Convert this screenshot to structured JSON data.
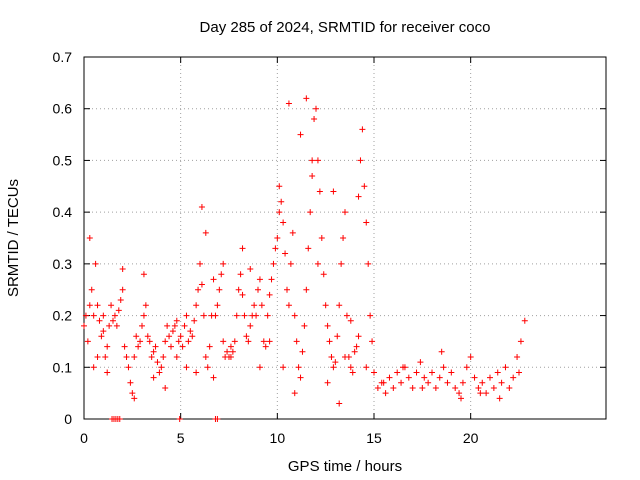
{
  "chart_data": {
    "type": "scatter",
    "title": "Day 285 of 2024, SRMTID for receiver coco",
    "xlabel": "GPS time / hours",
    "ylabel": "SRMTID / TECUs",
    "xlim": [
      0,
      27
    ],
    "ylim": [
      0,
      0.7
    ],
    "xticks": [
      0,
      5,
      10,
      15,
      20
    ],
    "yticks": [
      0,
      0.1,
      0.2,
      0.3,
      0.4,
      0.5,
      0.6,
      0.7
    ],
    "xtick_labels": [
      "0",
      "5",
      "10",
      "15",
      "20"
    ],
    "ytick_labels": [
      "0",
      "0.1",
      "0.2",
      "0.3",
      "0.4",
      "0.5",
      "0.6",
      "0.7"
    ],
    "grid": true,
    "marker": "+",
    "color": "#ff0000",
    "series": [
      {
        "name": "SRMTID",
        "x": [
          0.0,
          0.1,
          0.2,
          0.3,
          0.4,
          0.5,
          0.6,
          0.7,
          0.8,
          0.9,
          1.0,
          1.1,
          1.2,
          1.3,
          1.4,
          1.5,
          1.6,
          1.7,
          1.8,
          1.9,
          2.0,
          2.1,
          2.2,
          2.3,
          2.4,
          2.5,
          2.6,
          2.7,
          2.8,
          2.9,
          3.0,
          3.1,
          3.2,
          3.3,
          3.4,
          3.5,
          3.6,
          3.7,
          3.8,
          3.9,
          4.0,
          4.1,
          4.2,
          4.3,
          4.4,
          4.5,
          4.6,
          4.7,
          4.8,
          4.9,
          5.0,
          5.1,
          5.2,
          5.3,
          5.4,
          5.5,
          5.6,
          5.7,
          5.8,
          5.9,
          6.0,
          6.1,
          6.2,
          6.3,
          6.4,
          6.5,
          6.6,
          6.7,
          6.8,
          6.9,
          7.0,
          7.1,
          7.2,
          7.3,
          7.4,
          7.5,
          7.6,
          7.7,
          7.8,
          7.9,
          8.0,
          8.1,
          8.2,
          8.3,
          8.4,
          8.5,
          8.6,
          8.7,
          8.8,
          8.9,
          9.0,
          9.1,
          9.2,
          9.3,
          9.4,
          9.5,
          9.6,
          9.7,
          9.8,
          9.9,
          10.0,
          10.1,
          10.2,
          10.3,
          10.4,
          10.5,
          10.6,
          10.7,
          10.8,
          10.9,
          11.0,
          11.1,
          11.2,
          11.3,
          11.4,
          11.5,
          11.6,
          11.7,
          11.8,
          11.9,
          12.0,
          12.1,
          12.2,
          12.3,
          12.4,
          12.5,
          12.6,
          12.7,
          12.8,
          12.9,
          13.0,
          13.1,
          13.2,
          13.3,
          13.4,
          13.5,
          13.6,
          13.7,
          13.8,
          13.9,
          14.0,
          14.1,
          14.2,
          14.3,
          14.4,
          14.5,
          14.6,
          14.7,
          14.8,
          14.9,
          15.0,
          15.2,
          15.4,
          15.6,
          15.8,
          16.0,
          16.2,
          16.4,
          16.6,
          16.8,
          17.0,
          17.2,
          17.4,
          17.6,
          17.8,
          18.0,
          18.2,
          18.4,
          18.6,
          18.8,
          19.0,
          19.2,
          19.4,
          19.6,
          19.8,
          20.0,
          20.2,
          20.4,
          20.6,
          20.8,
          21.0,
          21.2,
          21.4,
          21.6,
          21.8,
          22.0,
          22.2,
          22.4,
          22.6,
          22.8,
          0.3,
          0.5,
          0.7,
          1.0,
          1.2,
          2.0,
          2.6,
          3.1,
          3.6,
          4.2,
          4.8,
          5.3,
          5.8,
          6.1,
          6.3,
          6.7,
          7.2,
          7.6,
          8.2,
          8.6,
          9.1,
          9.6,
          10.1,
          10.3,
          10.6,
          10.9,
          11.2,
          11.5,
          11.8,
          12.1,
          12.6,
          12.9,
          13.2,
          13.5,
          13.8,
          14.2,
          14.6,
          15.5,
          16.5,
          17.5,
          18.5,
          19.5,
          20.5,
          21.5,
          22.5,
          1.45,
          1.55,
          1.65,
          1.75,
          1.85,
          4.95,
          6.8,
          6.9
        ],
        "y": [
          0.18,
          0.2,
          0.15,
          0.22,
          0.25,
          0.2,
          0.3,
          0.22,
          0.19,
          0.16,
          0.2,
          0.12,
          0.14,
          0.18,
          0.22,
          0.19,
          0.2,
          0.18,
          0.21,
          0.23,
          0.25,
          0.14,
          0.12,
          0.1,
          0.07,
          0.05,
          0.12,
          0.16,
          0.14,
          0.15,
          0.18,
          0.2,
          0.22,
          0.16,
          0.15,
          0.12,
          0.13,
          0.14,
          0.11,
          0.09,
          0.1,
          0.12,
          0.15,
          0.18,
          0.16,
          0.14,
          0.17,
          0.18,
          0.19,
          0.15,
          0.16,
          0.14,
          0.18,
          0.2,
          0.15,
          0.17,
          0.16,
          0.19,
          0.22,
          0.25,
          0.3,
          0.26,
          0.2,
          0.12,
          0.1,
          0.14,
          0.2,
          0.27,
          0.2,
          0.22,
          0.25,
          0.28,
          0.15,
          0.12,
          0.13,
          0.12,
          0.14,
          0.13,
          0.15,
          0.2,
          0.25,
          0.28,
          0.24,
          0.2,
          0.16,
          0.15,
          0.18,
          0.2,
          0.22,
          0.2,
          0.25,
          0.27,
          0.22,
          0.15,
          0.14,
          0.2,
          0.24,
          0.27,
          0.3,
          0.33,
          0.35,
          0.4,
          0.42,
          0.38,
          0.32,
          0.25,
          0.22,
          0.3,
          0.36,
          0.2,
          0.15,
          0.1,
          0.08,
          0.13,
          0.18,
          0.25,
          0.33,
          0.4,
          0.5,
          0.58,
          0.6,
          0.5,
          0.44,
          0.35,
          0.28,
          0.22,
          0.18,
          0.15,
          0.12,
          0.1,
          0.11,
          0.16,
          0.22,
          0.3,
          0.35,
          0.4,
          0.2,
          0.12,
          0.1,
          0.09,
          0.13,
          0.14,
          0.16,
          0.5,
          0.56,
          0.45,
          0.38,
          0.3,
          0.2,
          0.15,
          0.09,
          0.06,
          0.07,
          0.05,
          0.08,
          0.06,
          0.09,
          0.07,
          0.1,
          0.08,
          0.06,
          0.09,
          0.11,
          0.08,
          0.07,
          0.09,
          0.06,
          0.08,
          0.1,
          0.07,
          0.09,
          0.06,
          0.05,
          0.07,
          0.1,
          0.12,
          0.08,
          0.06,
          0.07,
          0.05,
          0.08,
          0.06,
          0.09,
          0.07,
          0.1,
          0.06,
          0.08,
          0.12,
          0.15,
          0.19,
          0.35,
          0.1,
          0.12,
          0.17,
          0.09,
          0.29,
          0.04,
          0.28,
          0.08,
          0.06,
          0.12,
          0.1,
          0.09,
          0.41,
          0.36,
          0.08,
          0.3,
          0.12,
          0.33,
          0.29,
          0.1,
          0.15,
          0.45,
          0.1,
          0.61,
          0.05,
          0.55,
          0.62,
          0.47,
          0.3,
          0.07,
          0.44,
          0.03,
          0.12,
          0.19,
          0.43,
          0.1,
          0.07,
          0.1,
          0.06,
          0.13,
          0.04,
          0.05,
          0.04,
          0.09,
          0.0,
          0.0,
          0.0,
          0.0,
          0.0,
          0.0,
          0.0,
          0.0
        ]
      }
    ]
  }
}
